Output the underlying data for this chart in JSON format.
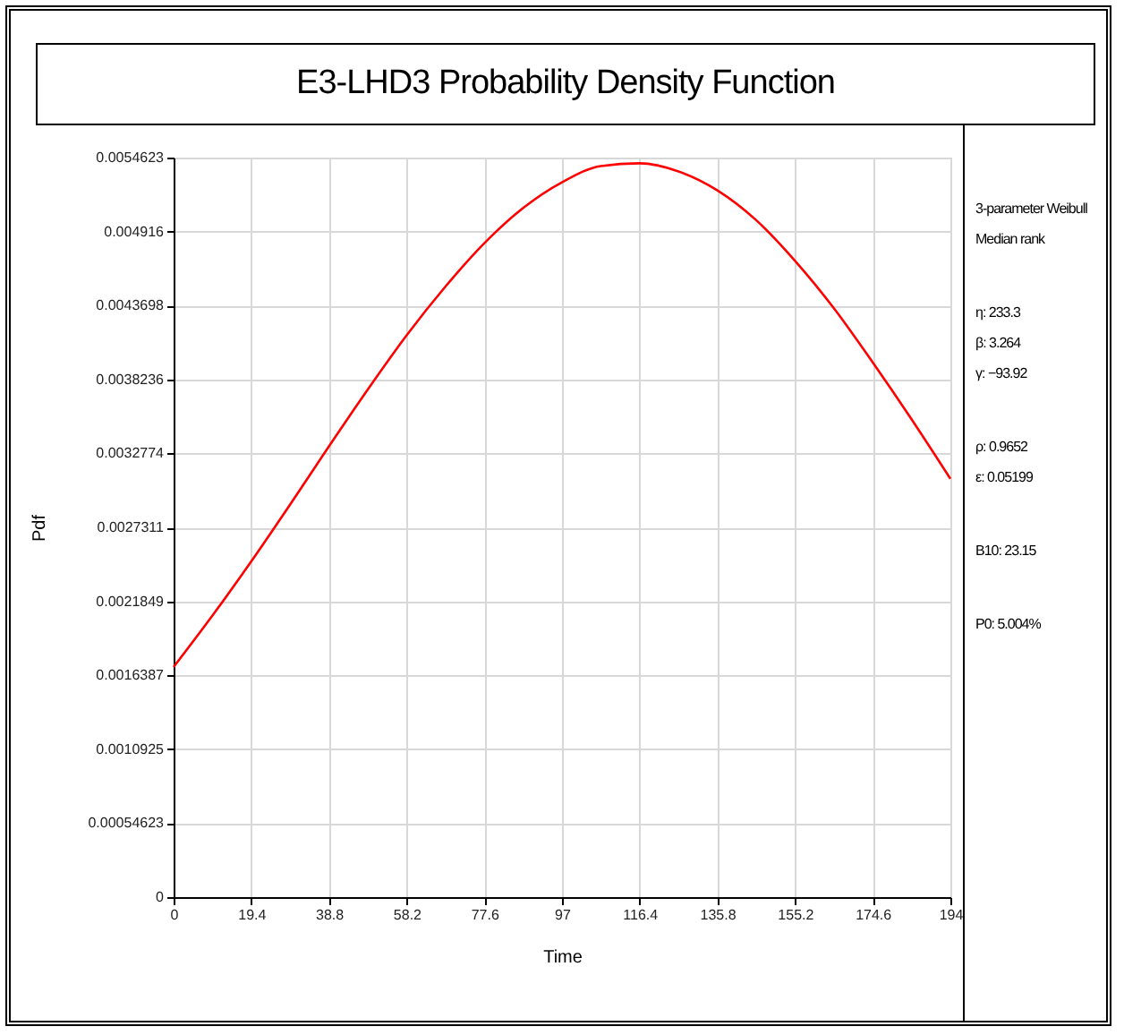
{
  "chart_data": {
    "type": "line",
    "title": "E3-LHD3 Probability Density Function",
    "xlabel": "Time",
    "ylabel": "Pdf",
    "x": [
      0,
      9.7,
      19.4,
      29.1,
      38.8,
      48.5,
      58.2,
      67.9,
      77.6,
      87.3,
      97,
      106.7,
      116.4,
      126.1,
      135.8,
      145.5,
      155.2,
      164.9,
      174.6,
      184.3,
      194
    ],
    "series": [
      {
        "color": "#ff0000",
        "values": [
          0.0017,
          0.00208,
          0.00248,
          0.0029,
          0.00333,
          0.00375,
          0.00415,
          0.00451,
          0.00483,
          0.00509,
          0.00528,
          0.0054,
          0.00542,
          0.00536,
          0.00522,
          0.005,
          0.0047,
          0.00435,
          0.00395,
          0.00353,
          0.00309
        ]
      }
    ],
    "xlim": [
      0,
      194
    ],
    "xticks": [
      0,
      19.4,
      38.8,
      58.2,
      77.6,
      97,
      116.4,
      135.8,
      155.2,
      174.6,
      194
    ],
    "ylim": [
      0,
      0.0054623
    ],
    "yticks": [
      0,
      0.00054623,
      0.0010925,
      0.0016387,
      0.0021849,
      0.0027311,
      0.0032774,
      0.0038236,
      0.0043698,
      0.004916,
      0.0054623
    ],
    "grid": true,
    "marker": "none",
    "line_style": "solid",
    "annotations": [
      "3-parameter Weibull",
      "Median rank",
      "η: 233.3",
      "β: 3.264",
      "γ: −93.92",
      "ρ: 0.9652",
      "ε: 0.05199",
      "B10: 23.15",
      "P0: 5.004%"
    ]
  }
}
